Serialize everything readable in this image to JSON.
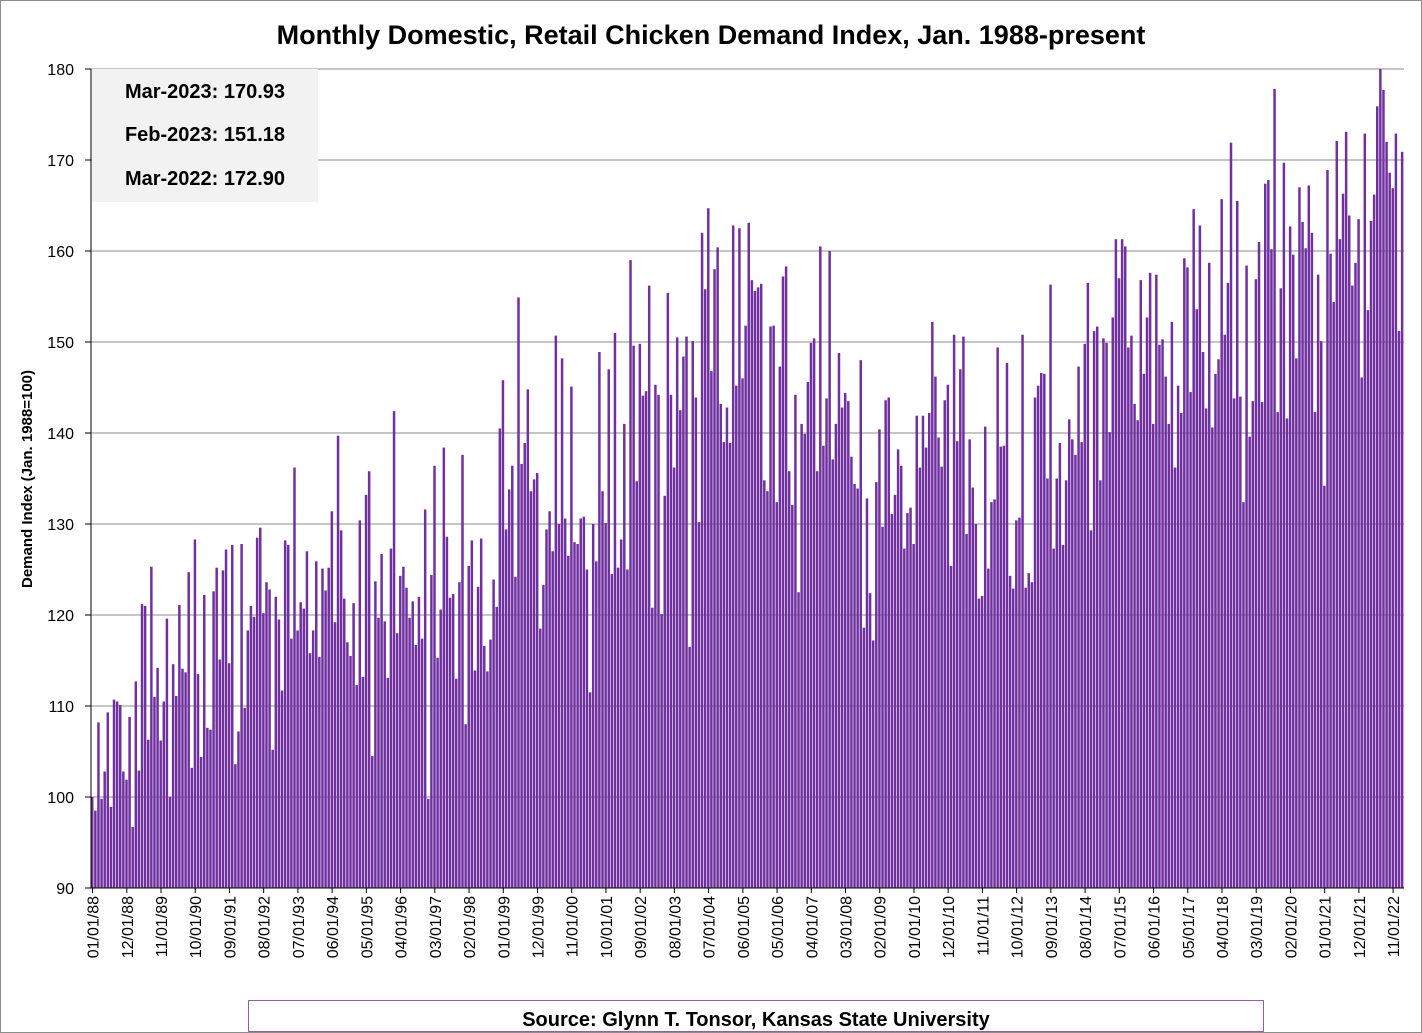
{
  "chart_data": {
    "type": "bar",
    "title": "Monthly Domestic, Retail Chicken Demand Index, Jan. 1988-present",
    "xlabel": "",
    "ylabel": "Demand Index (Jan. 1988=100)",
    "ylim": [
      90,
      180
    ],
    "yticks": [
      90,
      100,
      110,
      120,
      130,
      140,
      150,
      160,
      170,
      180
    ],
    "grid": true,
    "bar_color": "#7030a0",
    "x_start": "1988-01",
    "x_end": "2023-03",
    "x_tick_labels": [
      "01/01/88",
      "12/01/88",
      "11/01/89",
      "10/01/90",
      "09/01/91",
      "08/01/92",
      "07/01/93",
      "06/01/94",
      "05/01/95",
      "04/01/96",
      "03/01/97",
      "02/01/98",
      "01/01/99",
      "12/01/99",
      "11/01/00",
      "10/01/01",
      "09/01/02",
      "08/01/03",
      "07/01/04",
      "06/01/05",
      "05/01/06",
      "04/01/07",
      "03/01/08",
      "02/01/09",
      "01/01/10",
      "12/01/10",
      "11/01/11",
      "10/01/12",
      "09/01/13",
      "08/01/14",
      "07/01/15",
      "06/01/16",
      "05/01/17",
      "04/01/18",
      "03/01/19",
      "02/01/20",
      "01/01/21",
      "12/01/21",
      "11/01/22"
    ],
    "values": [
      100.0,
      98.5,
      108.2,
      99.8,
      102.8,
      109.3,
      98.9,
      110.7,
      110.5,
      110.1,
      102.8,
      101.9,
      108.8,
      96.7,
      112.7,
      102.9,
      121.2,
      121.0,
      106.3,
      125.3,
      111.0,
      114.2,
      106.2,
      110.5,
      119.6,
      100.0,
      114.6,
      111.1,
      121.1,
      114.1,
      113.7,
      124.7,
      103.2,
      128.3,
      113.5,
      104.4,
      122.2,
      107.6,
      107.4,
      122.6,
      125.2,
      115.1,
      124.9,
      127.2,
      114.7,
      127.7,
      103.6,
      107.2,
      127.8,
      109.8,
      118.3,
      121.0,
      119.8,
      128.5,
      129.6,
      120.2,
      123.6,
      122.8,
      105.2,
      122.0,
      119.5,
      111.7,
      128.2,
      127.7,
      117.4,
      136.2,
      118.3,
      121.4,
      120.7,
      127.0,
      115.8,
      118.3,
      125.9,
      115.4,
      125.1,
      122.7,
      125.2,
      131.4,
      119.2,
      139.7,
      129.3,
      121.8,
      117.0,
      115.5,
      121.3,
      112.3,
      130.4,
      113.2,
      133.2,
      135.8,
      104.5,
      123.7,
      119.7,
      126.7,
      119.3,
      113.1,
      127.3,
      142.4,
      118.0,
      124.3,
      125.3,
      123.0,
      119.7,
      121.5,
      116.7,
      122.0,
      117.4,
      131.6,
      99.8,
      124.4,
      136.4,
      115.3,
      120.6,
      138.4,
      128.6,
      121.9,
      122.3,
      113.0,
      123.6,
      137.6,
      108.0,
      125.4,
      128.2,
      113.9,
      123.1,
      128.4,
      116.6,
      113.8,
      117.3,
      123.9,
      120.9,
      140.5,
      145.8,
      129.4,
      133.8,
      136.4,
      124.2,
      154.9,
      136.6,
      138.9,
      144.8,
      133.6,
      134.9,
      135.6,
      118.5,
      123.3,
      129.4,
      131.4,
      127.0,
      150.7,
      130.0,
      148.2,
      130.6,
      126.5,
      145.1,
      128.0,
      127.8,
      130.6,
      130.8,
      125.0,
      111.5,
      130.0,
      125.9,
      148.9,
      133.6,
      130.1,
      147.0,
      124.5,
      151.0,
      125.2,
      128.3,
      141.0,
      125.0,
      159.0,
      149.6,
      134.7,
      149.8,
      144.1,
      144.6,
      156.2,
      120.8,
      145.3,
      144.2,
      120.1,
      133.1,
      155.4,
      144.2,
      136.2,
      150.5,
      142.5,
      148.4,
      150.6,
      116.5,
      150.1,
      143.9,
      130.2,
      162.0,
      155.8,
      164.7,
      146.8,
      158.0,
      160.4,
      143.2,
      139.0,
      142.8,
      138.9,
      162.8,
      145.2,
      162.5,
      146.0,
      151.8,
      163.1,
      156.8,
      155.6,
      156.0,
      156.4,
      134.8,
      133.6,
      151.7,
      151.8,
      132.4,
      147.3,
      157.2,
      158.3,
      135.8,
      132.1,
      144.2,
      122.5,
      141.0,
      139.9,
      145.6,
      149.9,
      150.4,
      135.8,
      160.5,
      138.6,
      143.8,
      160.0,
      137.1,
      141.0,
      148.8,
      142.8,
      144.4,
      143.5,
      137.4,
      134.4,
      133.9,
      148.0,
      118.6,
      132.8,
      122.4,
      117.2,
      134.6,
      140.4,
      129.7,
      143.6,
      143.9,
      131.1,
      133.2,
      138.2,
      136.4,
      127.3,
      131.2,
      131.8,
      127.8,
      141.9,
      136.2,
      141.9,
      138.4,
      142.2,
      152.2,
      146.2,
      139.5,
      136.3,
      143.6,
      145.3,
      125.4,
      150.8,
      139.1,
      147.0,
      150.6,
      128.9,
      139.3,
      134.0,
      130.0,
      121.8,
      122.1,
      140.7,
      125.1,
      132.4,
      132.7,
      149.4,
      138.5,
      138.6,
      147.7,
      124.3,
      122.9,
      130.4,
      130.7,
      150.8,
      123.0,
      124.6,
      123.6,
      143.9,
      145.2,
      146.6,
      146.5,
      135.0,
      156.3,
      127.3,
      135.0,
      138.9,
      127.7,
      134.8,
      141.5,
      139.3,
      137.6,
      147.3,
      139.0,
      149.8,
      156.5,
      129.3,
      151.2,
      151.7,
      134.8,
      150.4,
      149.9,
      140.1,
      152.7,
      161.3,
      157.0,
      161.3,
      160.5,
      149.4,
      150.7,
      143.2,
      141.4,
      156.8,
      146.5,
      152.7,
      157.6,
      141.0,
      157.4,
      149.7,
      150.3,
      146.2,
      141.0,
      152.2,
      136.2,
      145.2,
      142.2,
      159.2,
      158.2,
      144.5,
      164.6,
      153.6,
      162.8,
      148.9,
      142.7,
      158.7,
      140.6,
      146.5,
      148.1,
      165.7,
      150.8,
      156.5,
      171.9,
      143.8,
      165.5,
      144.0,
      132.4,
      158.4,
      139.6,
      143.5,
      156.9,
      161.0,
      143.4,
      167.4,
      167.8,
      160.2,
      177.8,
      142.3,
      155.9,
      169.7,
      141.6,
      162.7,
      159.6,
      148.2,
      167.0,
      163.2,
      160.3,
      167.2,
      162.0,
      142.3,
      157.4,
      150.1,
      134.2,
      168.9,
      159.7,
      154.4,
      172.1,
      161.3,
      166.3,
      173.1,
      163.9,
      156.2,
      158.7,
      163.5,
      146.1,
      172.9,
      153.5,
      163.3,
      166.2,
      175.9,
      180.0,
      177.7,
      172.0,
      168.6,
      166.9,
      172.9,
      151.2,
      170.9
    ]
  },
  "info_box": {
    "line1": "Mar-2023: 170.93",
    "line2": "Feb-2023: 151.18",
    "line3": "Mar-2022: 172.90"
  },
  "source": {
    "text": "Source: Glynn T. Tonsor, Kansas State University"
  }
}
